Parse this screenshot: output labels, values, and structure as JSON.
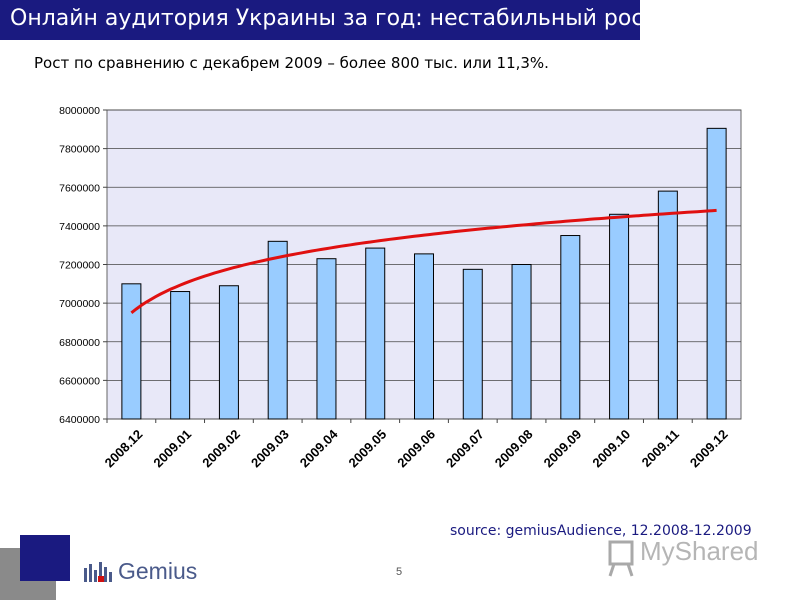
{
  "slide": {
    "title": "Онлайн аудитория Украины за год: нестабильный рост",
    "subtitle": "Рост по сравнению с декабрем 2009 – более 800 тыс. или  11,3%.",
    "source": "source: gemiusAudience, 12.2008-12.2009",
    "page_number": "5",
    "logo_text": "Gemius",
    "watermark_text": "MyShared",
    "title_bg_color": "#1a1a80"
  },
  "chart_data": {
    "type": "bar",
    "title": "",
    "xlabel": "",
    "ylabel": "",
    "categories": [
      "2008.12",
      "2009.01",
      "2009.02",
      "2009.03",
      "2009.04",
      "2009.05",
      "2009.06",
      "2009.07",
      "2009.08",
      "2009.09",
      "2009.10",
      "2009.11",
      "2009.12"
    ],
    "values": [
      7100000,
      7060000,
      7090000,
      7320000,
      7230000,
      7285000,
      7255000,
      7175000,
      7200000,
      7350000,
      7460000,
      7580000,
      7905000
    ],
    "ylim": [
      6400000,
      8000000
    ],
    "yticks": [
      6400000,
      6600000,
      6800000,
      7000000,
      7200000,
      7400000,
      7600000,
      7800000,
      8000000
    ],
    "grid": true,
    "legend": "none",
    "bar_color": "#99ccff",
    "plot_bg": "#e8e8f8",
    "trendline": {
      "type": "logarithmic",
      "color": "#e01010",
      "start": 6950000,
      "end": 7480000
    }
  }
}
